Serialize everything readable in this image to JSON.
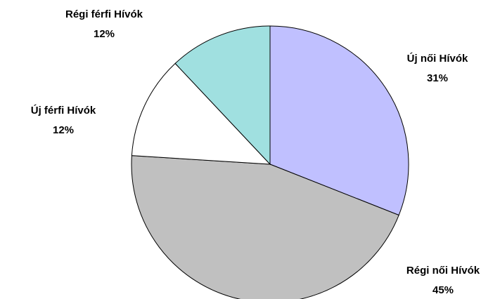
{
  "chart_data": {
    "type": "pie",
    "categories": [
      "Új női Hívók",
      "Régi női Hívók",
      "Új férfi Hívók",
      "Régi férfi Hívók"
    ],
    "values": [
      31,
      45,
      12,
      12
    ],
    "value_labels": [
      "31%",
      "45%",
      "12%",
      "12%"
    ],
    "colors": [
      "#c0c0ff",
      "#c0c0c0",
      "#ffffff",
      "#a0e0e0"
    ]
  }
}
